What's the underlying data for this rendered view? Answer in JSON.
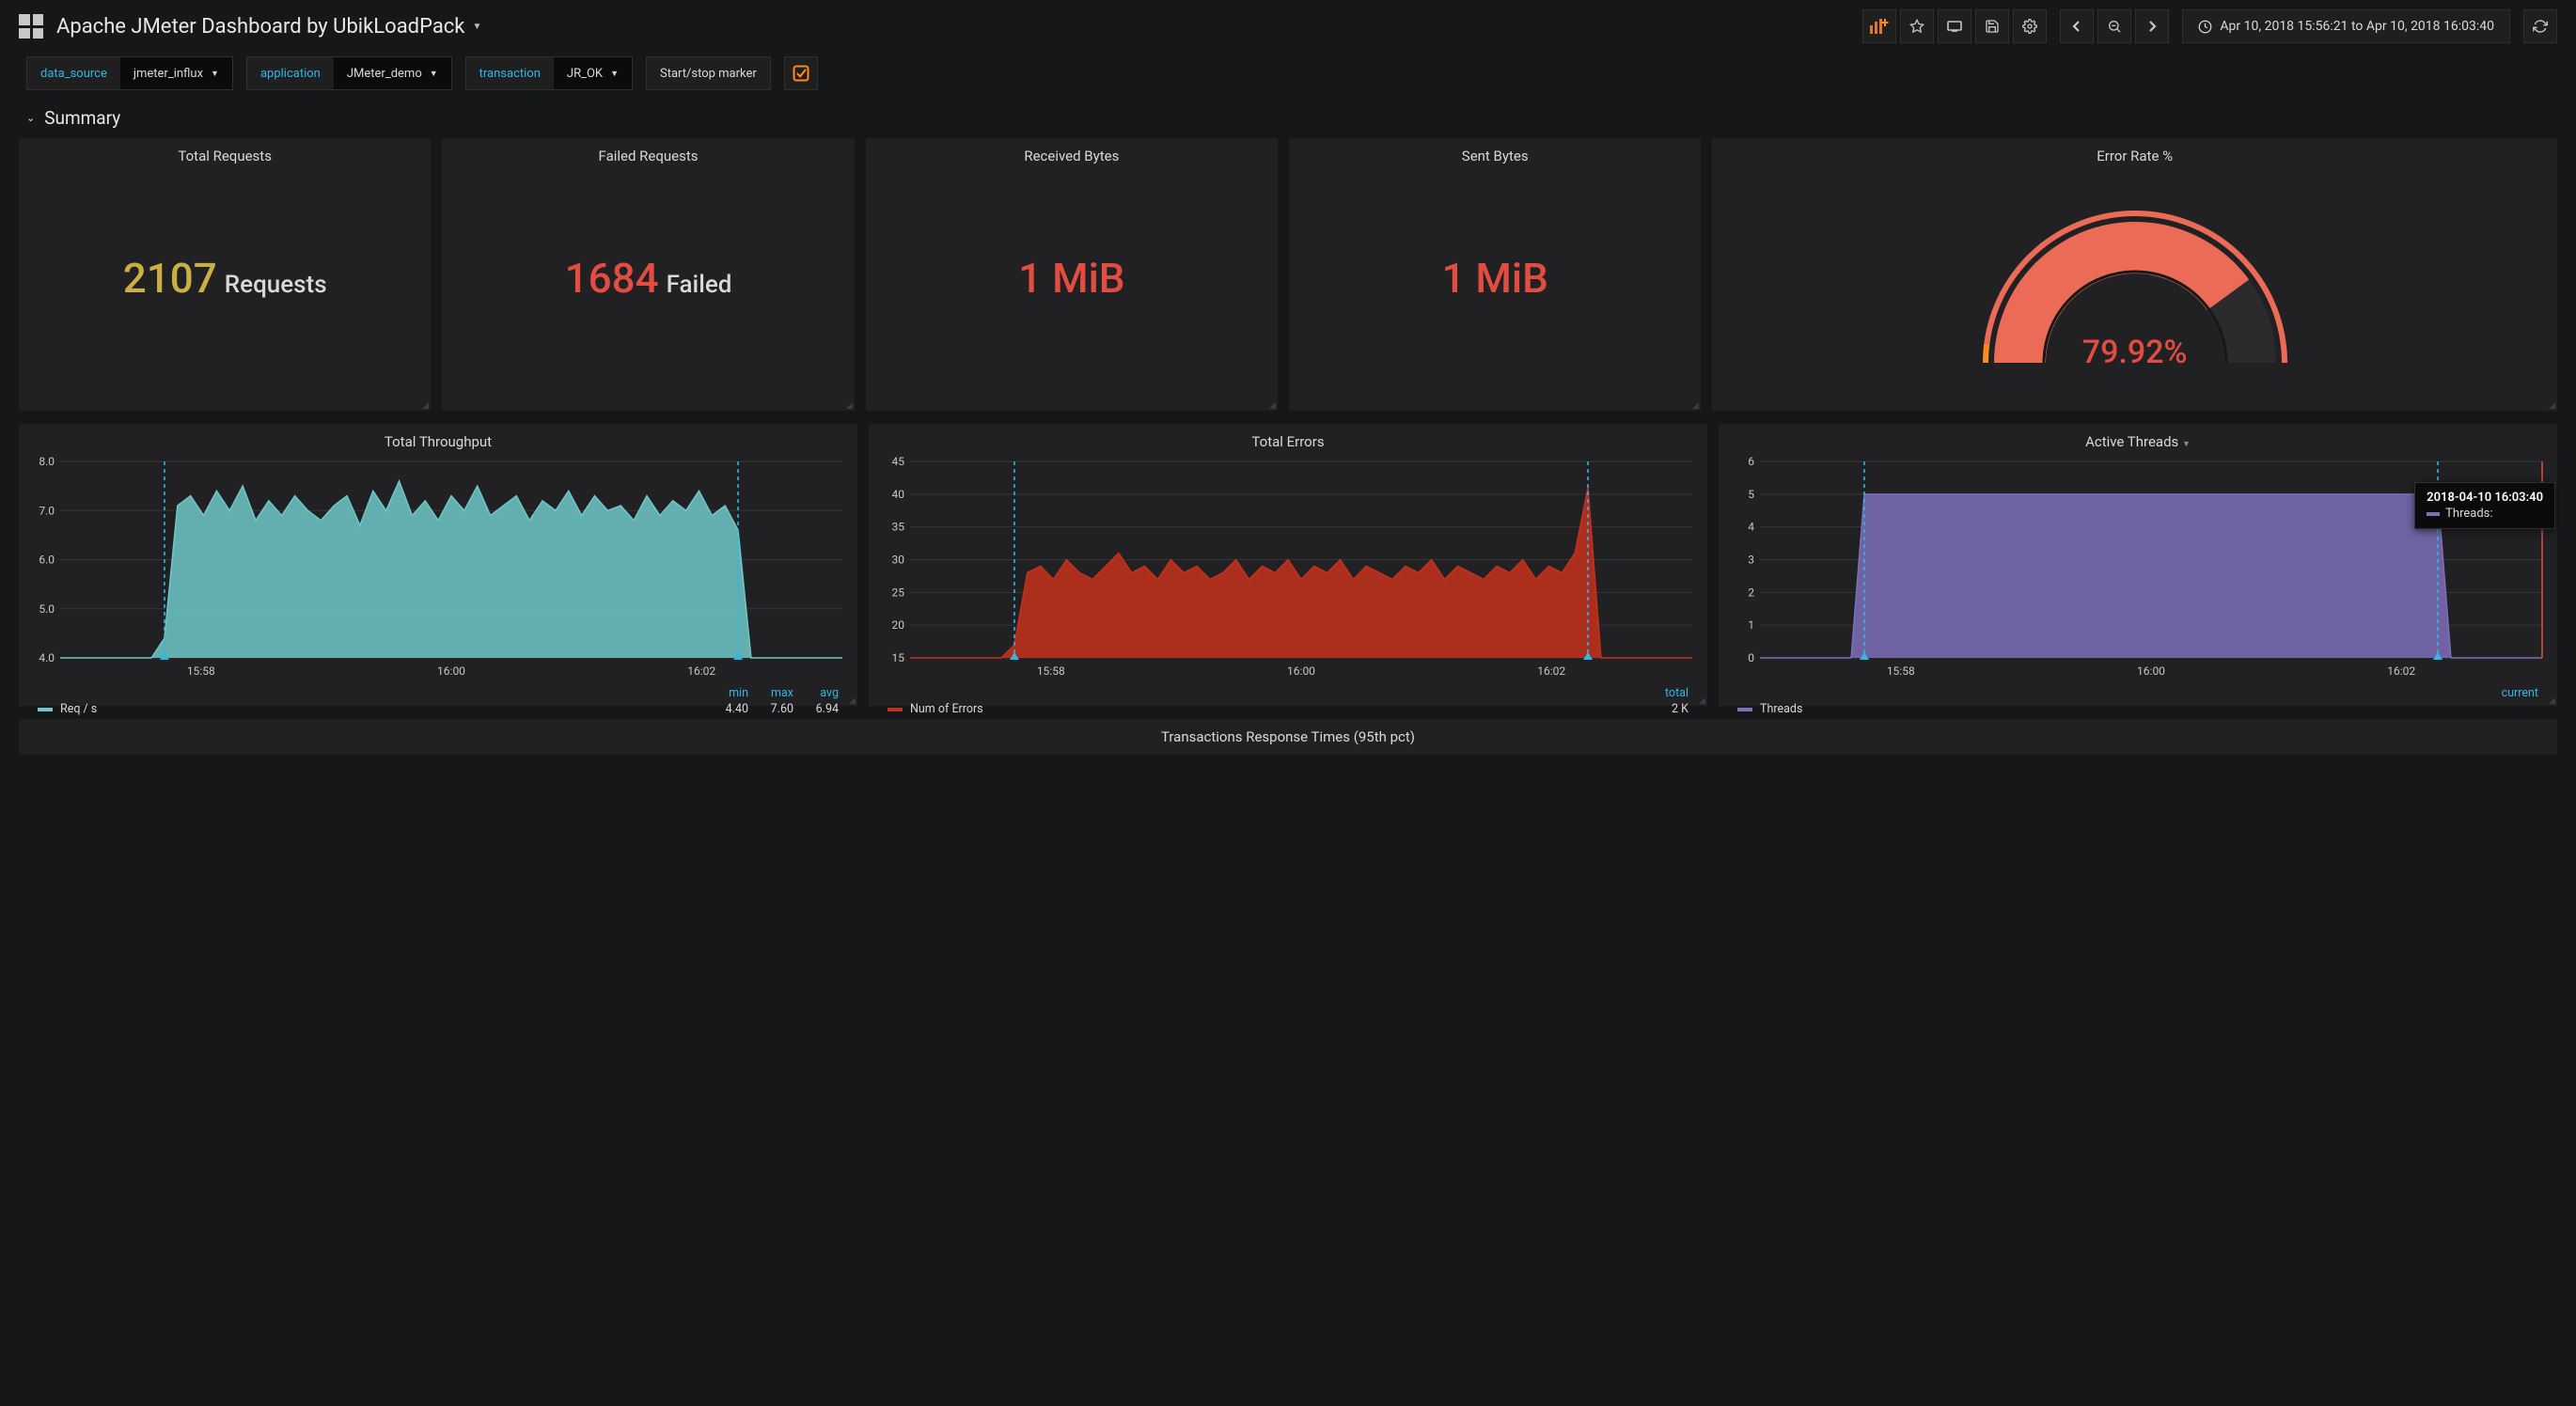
{
  "header": {
    "title": "Apache JMeter Dashboard by UbikLoadPack",
    "time_range": "Apr 10, 2018 15:56:21 to Apr 10, 2018 16:03:40"
  },
  "variables": [
    {
      "label": "data_source",
      "value": "jmeter_influx"
    },
    {
      "label": "application",
      "value": "JMeter_demo"
    },
    {
      "label": "transaction",
      "value": "JR_OK"
    }
  ],
  "marker_label": "Start/stop marker",
  "section_title": "Summary",
  "stats": {
    "total_requests": {
      "title": "Total Requests",
      "value": "2107",
      "unit": "Requests",
      "color": "#c9b042"
    },
    "failed_requests": {
      "title": "Failed Requests",
      "value": "1684",
      "unit": "Failed",
      "color": "#e24d42"
    },
    "received_bytes": {
      "title": "Received Bytes",
      "value": "1 MiB",
      "color": "#e24d42"
    },
    "sent_bytes": {
      "title": "Sent Bytes",
      "value": "1 MiB",
      "color": "#e24d42"
    }
  },
  "gauge": {
    "title": "Error Rate %",
    "value_text": "79.92%",
    "percent": 79.92,
    "fill_color": "#ec6b56",
    "track_color": "#2b2b2d",
    "tick_colors": [
      "#ff8a1f",
      "#ec6b56",
      "#ec6b56"
    ]
  },
  "charts": {
    "throughput": {
      "title": "Total Throughput",
      "type": "area",
      "series_label": "Req / s",
      "color": "#6fc8c8",
      "y": {
        "min": 4.0,
        "max": 8.0,
        "step": 1.0,
        "fmt": 1
      },
      "x_labels": [
        "15:58",
        "16:00",
        "16:02"
      ],
      "x_range": [
        0,
        60
      ],
      "marker_x": [
        8,
        52
      ],
      "data": [
        [
          0,
          4.0
        ],
        [
          1,
          4.0
        ],
        [
          2,
          4.0
        ],
        [
          3,
          4.0
        ],
        [
          4,
          4.0
        ],
        [
          5,
          4.0
        ],
        [
          6,
          4.0
        ],
        [
          7,
          4.0
        ],
        [
          8,
          4.4
        ],
        [
          9,
          7.1
        ],
        [
          10,
          7.3
        ],
        [
          11,
          6.9
        ],
        [
          12,
          7.4
        ],
        [
          13,
          7.0
        ],
        [
          14,
          7.5
        ],
        [
          15,
          6.8
        ],
        [
          16,
          7.2
        ],
        [
          17,
          6.9
        ],
        [
          18,
          7.3
        ],
        [
          19,
          7.0
        ],
        [
          20,
          6.8
        ],
        [
          21,
          7.1
        ],
        [
          22,
          7.3
        ],
        [
          23,
          6.7
        ],
        [
          24,
          7.4
        ],
        [
          25,
          7.0
        ],
        [
          26,
          7.6
        ],
        [
          27,
          6.9
        ],
        [
          28,
          7.2
        ],
        [
          29,
          6.8
        ],
        [
          30,
          7.3
        ],
        [
          31,
          7.0
        ],
        [
          32,
          7.5
        ],
        [
          33,
          6.9
        ],
        [
          34,
          7.1
        ],
        [
          35,
          7.3
        ],
        [
          36,
          6.8
        ],
        [
          37,
          7.2
        ],
        [
          38,
          7.0
        ],
        [
          39,
          7.4
        ],
        [
          40,
          6.9
        ],
        [
          41,
          7.3
        ],
        [
          42,
          7.0
        ],
        [
          43,
          7.1
        ],
        [
          44,
          6.8
        ],
        [
          45,
          7.3
        ],
        [
          46,
          6.9
        ],
        [
          47,
          7.2
        ],
        [
          48,
          7.0
        ],
        [
          49,
          7.4
        ],
        [
          50,
          6.9
        ],
        [
          51,
          7.1
        ],
        [
          52,
          6.6
        ],
        [
          53,
          4.0
        ],
        [
          54,
          4.0
        ],
        [
          55,
          4.0
        ],
        [
          56,
          4.0
        ],
        [
          57,
          4.0
        ],
        [
          58,
          4.0
        ],
        [
          59,
          4.0
        ],
        [
          60,
          4.0
        ]
      ],
      "stats": {
        "headers": [
          "min",
          "max",
          "avg"
        ],
        "values": [
          "4.40",
          "7.60",
          "6.94"
        ]
      }
    },
    "errors": {
      "title": "Total Errors",
      "type": "area",
      "series_label": "Num of Errors",
      "color": "#c4311c",
      "y": {
        "min": 15,
        "max": 45,
        "step": 5,
        "fmt": 0
      },
      "x_labels": [
        "15:58",
        "16:00",
        "16:02"
      ],
      "x_range": [
        0,
        60
      ],
      "marker_x": [
        8,
        52
      ],
      "data": [
        [
          0,
          15
        ],
        [
          1,
          15
        ],
        [
          2,
          15
        ],
        [
          3,
          15
        ],
        [
          4,
          15
        ],
        [
          5,
          15
        ],
        [
          6,
          15
        ],
        [
          7,
          15
        ],
        [
          8,
          17
        ],
        [
          9,
          28
        ],
        [
          10,
          29
        ],
        [
          11,
          27
        ],
        [
          12,
          30
        ],
        [
          13,
          28
        ],
        [
          14,
          27
        ],
        [
          15,
          29
        ],
        [
          16,
          31
        ],
        [
          17,
          28
        ],
        [
          18,
          29
        ],
        [
          19,
          27
        ],
        [
          20,
          30
        ],
        [
          21,
          28
        ],
        [
          22,
          29
        ],
        [
          23,
          27
        ],
        [
          24,
          28
        ],
        [
          25,
          30
        ],
        [
          26,
          27
        ],
        [
          27,
          29
        ],
        [
          28,
          28
        ],
        [
          29,
          30
        ],
        [
          30,
          27
        ],
        [
          31,
          29
        ],
        [
          32,
          28
        ],
        [
          33,
          30
        ],
        [
          34,
          27
        ],
        [
          35,
          29
        ],
        [
          36,
          28
        ],
        [
          37,
          27
        ],
        [
          38,
          29
        ],
        [
          39,
          28
        ],
        [
          40,
          30
        ],
        [
          41,
          27
        ],
        [
          42,
          29
        ],
        [
          43,
          28
        ],
        [
          44,
          27
        ],
        [
          45,
          29
        ],
        [
          46,
          28
        ],
        [
          47,
          30
        ],
        [
          48,
          27
        ],
        [
          49,
          29
        ],
        [
          50,
          28
        ],
        [
          51,
          31
        ],
        [
          52,
          41
        ],
        [
          53,
          15
        ],
        [
          54,
          15
        ],
        [
          55,
          15
        ],
        [
          56,
          15
        ],
        [
          57,
          15
        ],
        [
          58,
          15
        ],
        [
          59,
          15
        ],
        [
          60,
          15
        ]
      ],
      "stats": {
        "headers": [
          "total"
        ],
        "values": [
          "2 K"
        ]
      }
    },
    "threads": {
      "title": "Active Threads",
      "type": "area",
      "series_label": "Threads",
      "color": "#7d6fba",
      "y": {
        "min": 0,
        "max": 6,
        "step": 1,
        "fmt": 0
      },
      "x_labels": [
        "15:58",
        "16:00",
        "16:02"
      ],
      "x_range": [
        0,
        60
      ],
      "marker_x": [
        8,
        52
      ],
      "data": [
        [
          0,
          0
        ],
        [
          1,
          0
        ],
        [
          2,
          0
        ],
        [
          3,
          0
        ],
        [
          4,
          0
        ],
        [
          5,
          0
        ],
        [
          6,
          0
        ],
        [
          7,
          0
        ],
        [
          8,
          5
        ],
        [
          9,
          5
        ],
        [
          10,
          5
        ],
        [
          11,
          5
        ],
        [
          12,
          5
        ],
        [
          13,
          5
        ],
        [
          14,
          5
        ],
        [
          15,
          5
        ],
        [
          16,
          5
        ],
        [
          17,
          5
        ],
        [
          18,
          5
        ],
        [
          19,
          5
        ],
        [
          20,
          5
        ],
        [
          21,
          5
        ],
        [
          22,
          5
        ],
        [
          23,
          5
        ],
        [
          24,
          5
        ],
        [
          25,
          5
        ],
        [
          26,
          5
        ],
        [
          27,
          5
        ],
        [
          28,
          5
        ],
        [
          29,
          5
        ],
        [
          30,
          5
        ],
        [
          31,
          5
        ],
        [
          32,
          5
        ],
        [
          33,
          5
        ],
        [
          34,
          5
        ],
        [
          35,
          5
        ],
        [
          36,
          5
        ],
        [
          37,
          5
        ],
        [
          38,
          5
        ],
        [
          39,
          5
        ],
        [
          40,
          5
        ],
        [
          41,
          5
        ],
        [
          42,
          5
        ],
        [
          43,
          5
        ],
        [
          44,
          5
        ],
        [
          45,
          5
        ],
        [
          46,
          5
        ],
        [
          47,
          5
        ],
        [
          48,
          5
        ],
        [
          49,
          5
        ],
        [
          50,
          5
        ],
        [
          51,
          5
        ],
        [
          52,
          5
        ],
        [
          53,
          0
        ],
        [
          54,
          0
        ],
        [
          55,
          0
        ],
        [
          56,
          0
        ],
        [
          57,
          0
        ],
        [
          58,
          0
        ],
        [
          59,
          0
        ],
        [
          60,
          0
        ]
      ],
      "stats": {
        "headers": [
          "current"
        ],
        "values": [
          ""
        ]
      },
      "tooltip": {
        "time": "2018-04-10 16:03:40",
        "label": "Threads:",
        "value": ""
      },
      "cursor_x": 60
    }
  },
  "bottom_panel_title": "Transactions Response Times (95th pct)",
  "style": {
    "panel_bg": "#212124",
    "grid_color": "#353638",
    "text_color": "#d8d9da",
    "axis_text": "#c7c7c7",
    "marker_color": "#33b5e5",
    "cursor_color": "#e24d42"
  }
}
